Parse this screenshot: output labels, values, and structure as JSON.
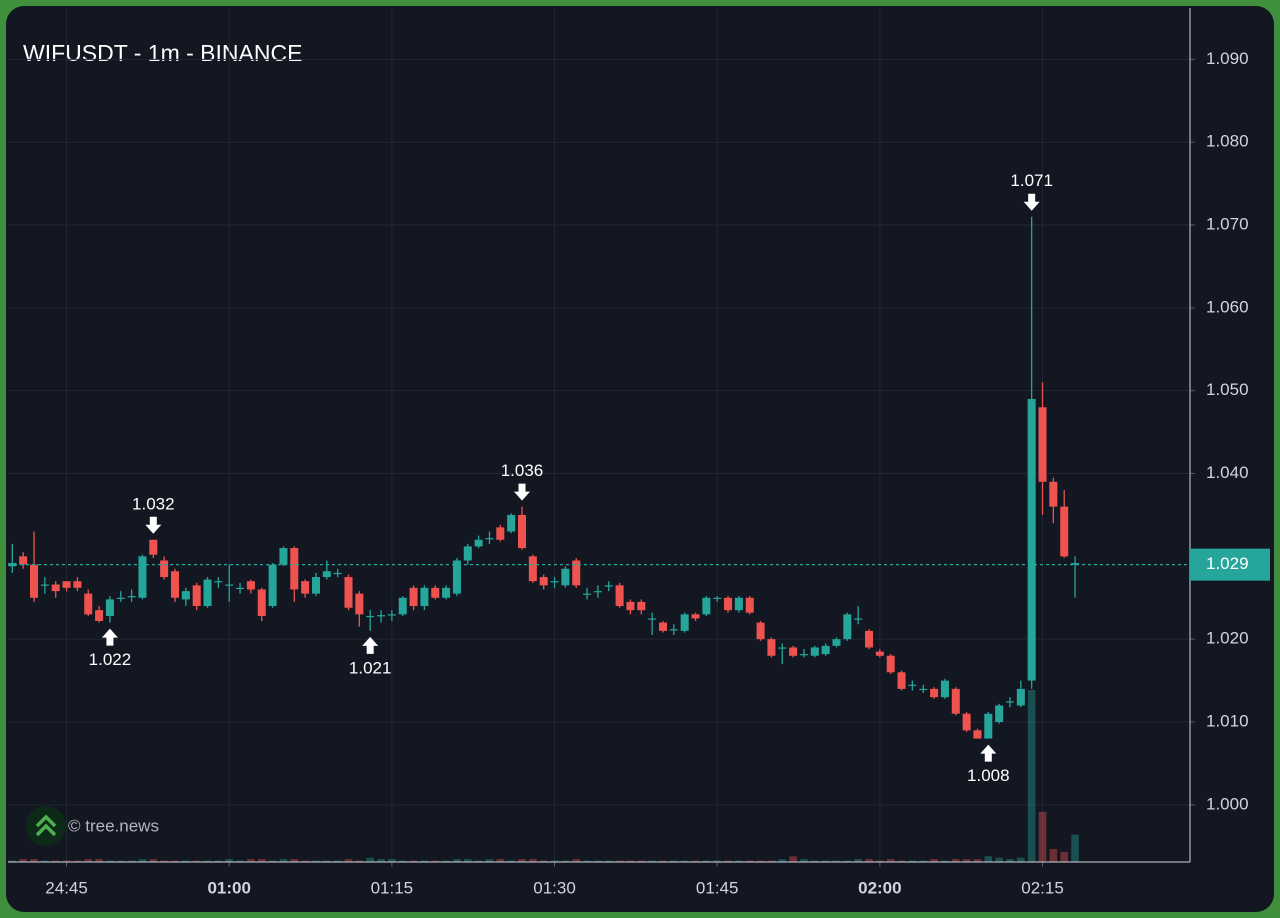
{
  "chart_data": {
    "type": "candlestick",
    "title": "WIFUSDT - 1m - BINANCE",
    "watermark": "© tree.news",
    "up_color": "#26a69a",
    "down_color": "#ef5350",
    "grid": true,
    "xlim": [
      -0.4,
      108.6
    ],
    "xticks": [
      {
        "value": 5,
        "label": "24:45"
      },
      {
        "value": 20,
        "label": "01:00",
        "bold": true
      },
      {
        "value": 35,
        "label": "01:15"
      },
      {
        "value": 50,
        "label": "01:30"
      },
      {
        "value": 65,
        "label": "01:45"
      },
      {
        "value": 80,
        "label": "02:00",
        "bold": true
      },
      {
        "value": 95,
        "label": "02:15"
      }
    ],
    "ylim": [
      0.9931,
      1.0962
    ],
    "yticks": [
      {
        "value": 1.0,
        "label": "1.000"
      },
      {
        "value": 1.01,
        "label": "1.010"
      },
      {
        "value": 1.02,
        "label": "1.020"
      },
      {
        "value": 1.04,
        "label": "1.040"
      },
      {
        "value": 1.05,
        "label": "1.050"
      },
      {
        "value": 1.06,
        "label": "1.060"
      },
      {
        "value": 1.07,
        "label": "1.070"
      },
      {
        "value": 1.08,
        "label": "1.080"
      },
      {
        "value": 1.09,
        "label": "1.090"
      }
    ],
    "last_price": 1.029,
    "open": [
      1.0288,
      1.03,
      1.029,
      1.0265,
      1.0266,
      1.027,
      1.027,
      1.0255,
      1.0235,
      1.0228,
      1.025,
      1.0252,
      1.025,
      1.032,
      1.0295,
      1.0282,
      1.0248,
      1.0265,
      1.024,
      1.027,
      1.0265,
      1.0262,
      1.027,
      1.026,
      1.024,
      1.029,
      1.031,
      1.027,
      1.0255,
      1.0275,
      1.028,
      1.0275,
      1.0255,
      1.0228,
      1.0228,
      1.023,
      1.023,
      1.0262,
      1.024,
      1.0262,
      1.025,
      1.0255,
      1.0295,
      1.0312,
      1.0322,
      1.0335,
      1.033,
      1.035,
      1.03,
      1.0275,
      1.027,
      1.0265,
      1.0295,
      1.0255,
      1.0258,
      1.0265,
      1.0265,
      1.0245,
      1.0245,
      1.0225,
      1.022,
      1.0212,
      1.021,
      1.023,
      1.023,
      1.025,
      1.025,
      1.0235,
      1.025,
      1.022,
      1.02,
      1.019,
      1.019,
      1.0182,
      1.018,
      1.0182,
      1.0192,
      1.02,
      1.0225,
      1.021,
      1.0185,
      1.018,
      1.016,
      1.0145,
      1.014,
      1.014,
      1.013,
      1.014,
      1.011,
      1.009,
      1.008,
      1.01,
      1.0125,
      1.012,
      1.015,
      1.048,
      1.039,
      1.036,
      1.029
    ],
    "high": [
      1.0315,
      1.0305,
      1.033,
      1.0275,
      1.027,
      1.027,
      1.0275,
      1.026,
      1.024,
      1.0252,
      1.0258,
      1.026,
      1.0302,
      1.032,
      1.03,
      1.0285,
      1.0262,
      1.0268,
      1.0275,
      1.0275,
      1.029,
      1.0268,
      1.0272,
      1.0262,
      1.0292,
      1.0312,
      1.0312,
      1.0272,
      1.028,
      1.0295,
      1.0285,
      1.0278,
      1.0258,
      1.0235,
      1.0235,
      1.0235,
      1.0252,
      1.0265,
      1.0265,
      1.0265,
      1.0265,
      1.0298,
      1.0315,
      1.0325,
      1.033,
      1.0338,
      1.0352,
      1.036,
      1.0302,
      1.0278,
      1.0275,
      1.0288,
      1.0298,
      1.0262,
      1.0265,
      1.027,
      1.0268,
      1.0248,
      1.0248,
      1.0232,
      1.0222,
      1.0218,
      1.0232,
      1.0232,
      1.0252,
      1.0252,
      1.0252,
      1.0252,
      1.0252,
      1.0222,
      1.0202,
      1.0195,
      1.0192,
      1.0188,
      1.0192,
      1.0195,
      1.0202,
      1.0232,
      1.024,
      1.0212,
      1.0188,
      1.0182,
      1.0162,
      1.015,
      1.0145,
      1.0142,
      1.0152,
      1.0142,
      1.0112,
      1.0092,
      1.0112,
      1.0122,
      1.013,
      1.015,
      1.071,
      1.051,
      1.0395,
      1.038,
      1.03
    ],
    "low": [
      1.028,
      1.0285,
      1.0245,
      1.0255,
      1.025,
      1.0258,
      1.0258,
      1.0228,
      1.022,
      1.022,
      1.0245,
      1.0245,
      1.0248,
      1.0298,
      1.0272,
      1.0245,
      1.024,
      1.0235,
      1.0238,
      1.0262,
      1.0245,
      1.0255,
      1.0255,
      1.0222,
      1.0238,
      1.0288,
      1.0245,
      1.025,
      1.0252,
      1.0272,
      1.0275,
      1.0235,
      1.0215,
      1.021,
      1.022,
      1.0222,
      1.0228,
      1.0235,
      1.0235,
      1.0248,
      1.0248,
      1.0252,
      1.029,
      1.031,
      1.0315,
      1.0318,
      1.0328,
      1.0308,
      1.0268,
      1.026,
      1.0262,
      1.0262,
      1.0262,
      1.0248,
      1.025,
      1.0258,
      1.0238,
      1.023,
      1.023,
      1.0205,
      1.0208,
      1.0205,
      1.0208,
      1.0222,
      1.0228,
      1.0245,
      1.0232,
      1.0232,
      1.023,
      1.0198,
      1.0178,
      1.017,
      1.0178,
      1.0178,
      1.0178,
      1.018,
      1.019,
      1.0198,
      1.0218,
      1.0188,
      1.0178,
      1.0158,
      1.0138,
      1.0138,
      1.0135,
      1.0128,
      1.0128,
      1.0108,
      1.0088,
      1.008,
      1.008,
      1.0098,
      1.0118,
      1.0118,
      1.014,
      1.035,
      1.034,
      1.0298,
      1.025
    ],
    "close": [
      1.0292,
      1.029,
      1.025,
      1.0266,
      1.0258,
      1.0262,
      1.0262,
      1.023,
      1.0222,
      1.0248,
      1.025,
      1.0252,
      1.03,
      1.0302,
      1.0275,
      1.025,
      1.0258,
      1.024,
      1.0272,
      1.027,
      1.0266,
      1.0262,
      1.026,
      1.0228,
      1.029,
      1.031,
      1.026,
      1.0255,
      1.0275,
      1.0282,
      1.028,
      1.0238,
      1.023,
      1.0228,
      1.0229,
      1.023,
      1.025,
      1.024,
      1.0262,
      1.025,
      1.0262,
      1.0295,
      1.0312,
      1.032,
      1.0322,
      1.032,
      1.035,
      1.031,
      1.027,
      1.0265,
      1.027,
      1.0285,
      1.0265,
      1.0255,
      1.0258,
      1.0265,
      1.024,
      1.0235,
      1.0235,
      1.0225,
      1.021,
      1.0212,
      1.023,
      1.0225,
      1.025,
      1.025,
      1.0235,
      1.025,
      1.0232,
      1.02,
      1.018,
      1.019,
      1.018,
      1.0182,
      1.019,
      1.0192,
      1.02,
      1.023,
      1.0225,
      1.019,
      1.018,
      1.016,
      1.014,
      1.0145,
      1.014,
      1.013,
      1.015,
      1.011,
      1.009,
      1.008,
      1.011,
      1.012,
      1.0125,
      1.014,
      1.049,
      1.039,
      1.036,
      1.03,
      1.0292
    ],
    "volume": [
      1,
      2,
      2,
      1,
      1,
      1,
      1,
      2,
      2,
      1,
      1,
      1,
      2,
      2,
      1,
      1,
      1,
      1,
      1,
      1,
      2,
      1,
      2,
      2,
      1,
      2,
      2,
      1,
      1,
      1,
      1,
      2,
      1,
      3,
      2,
      2,
      1,
      1,
      1,
      1,
      1,
      2,
      2,
      1,
      2,
      2,
      1,
      2,
      2,
      1,
      1,
      1,
      2,
      1,
      1,
      1,
      1,
      1,
      1,
      1,
      1,
      1,
      1,
      1,
      1,
      1,
      1,
      1,
      1,
      1,
      1,
      2,
      4,
      2,
      1,
      1,
      1,
      1,
      2,
      2,
      1,
      2,
      1,
      1,
      1,
      2,
      1,
      2,
      2,
      2,
      4,
      3,
      2,
      3,
      120,
      35,
      9,
      7,
      19
    ],
    "annotations": [
      {
        "index": 9,
        "value": 1.022,
        "direction": "up"
      },
      {
        "index": 13,
        "value": 1.032,
        "direction": "down"
      },
      {
        "index": 33,
        "value": 1.021,
        "direction": "up"
      },
      {
        "index": 47,
        "value": 1.036,
        "direction": "down"
      },
      {
        "index": 90,
        "value": 1.008,
        "direction": "up"
      },
      {
        "index": 94,
        "value": 1.071,
        "direction": "down"
      }
    ]
  }
}
